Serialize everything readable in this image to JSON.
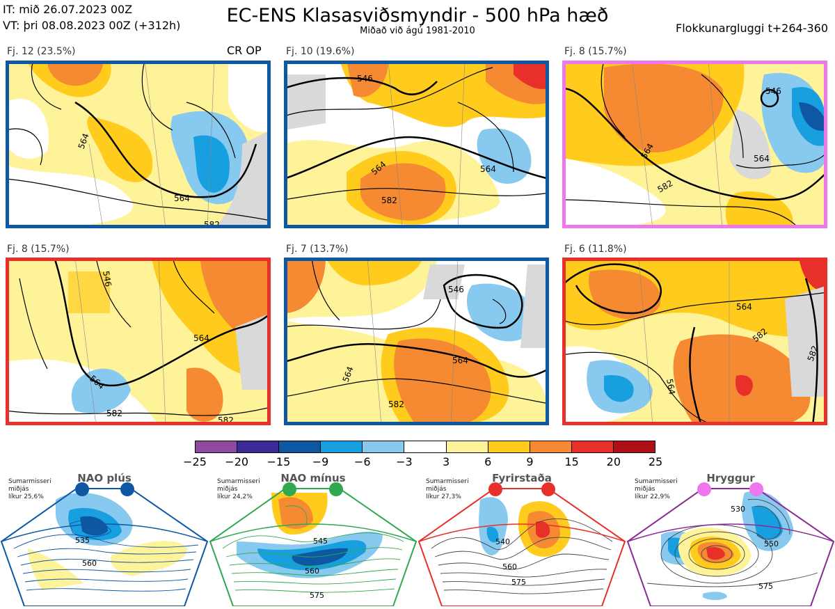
{
  "header": {
    "it": "IT: mið 26.07.2023 00Z",
    "vt": "VT: þri 08.08.2023 00Z  (+312h)",
    "title": "EC-ENS Klasasviðsmyndir - 500 hPa hæð",
    "subtitle": "Miðað við ágú 1981-2010",
    "window": "Flokkunargluggi t+264-360"
  },
  "cr_op": "CR OP",
  "panels": [
    {
      "label": "Fj. 12 (23.5%)",
      "border": "#0d57a3",
      "contours": [
        "564",
        "564",
        "582"
      ]
    },
    {
      "label": "Fj. 10 (19.6%)",
      "border": "#0d57a3",
      "contours": [
        "546",
        "564",
        "564",
        "582"
      ]
    },
    {
      "label": "Fj. 8 (15.7%)",
      "border": "#ee77ee",
      "contours": [
        "546",
        "564",
        "582",
        "564"
      ]
    },
    {
      "label": "Fj. 8 (15.7%)",
      "border": "#e8302a",
      "contours": [
        "546",
        "564",
        "564",
        "582",
        "582"
      ]
    },
    {
      "label": "Fj. 7 (13.7%)",
      "border": "#0d57a3",
      "contours": [
        "546",
        "564",
        "564",
        "582"
      ]
    },
    {
      "label": "Fj. 6 (11.8%)",
      "border": "#e8302a",
      "contours": [
        "564",
        "582",
        "582",
        "564"
      ]
    }
  ],
  "colorbar": {
    "colors": [
      "#8e4a9e",
      "#3a2b96",
      "#0d57a3",
      "#179fe0",
      "#87c9ef",
      "#ffffff",
      "#fff39a",
      "#ffcc1e",
      "#f58a33",
      "#e8302a",
      "#ad1116"
    ],
    "ticks": [
      "−25",
      "−20",
      "−15",
      "−9",
      "−6",
      "−3",
      "3",
      "6",
      "9",
      "15",
      "20",
      "25"
    ]
  },
  "regimes": [
    {
      "name": "NAO plús",
      "season": "Sumarmisseri",
      "median": "miðjás",
      "prob": "líkur 25,6%",
      "color": "#0d57a3",
      "contours": [
        "535",
        "560"
      ]
    },
    {
      "name": "NAO mínus",
      "season": "Sumarmisseri",
      "median": "miðjás",
      "prob": "líkur 24,2%",
      "color": "#2fa84f",
      "contours": [
        "545",
        "560",
        "575"
      ]
    },
    {
      "name": "Fyrirstaða",
      "season": "Sumarmisseri",
      "median": "miðjás",
      "prob": "líkur 27,3%",
      "color": "#e8302a",
      "contours": [
        "540",
        "560",
        "575"
      ]
    },
    {
      "name": "Hryggur",
      "season": "Sumarmisseri",
      "median": "miðjás",
      "prob": "líkur 22,9%",
      "color": "#ee77ee",
      "contours": [
        "530",
        "550",
        "575"
      ]
    }
  ]
}
